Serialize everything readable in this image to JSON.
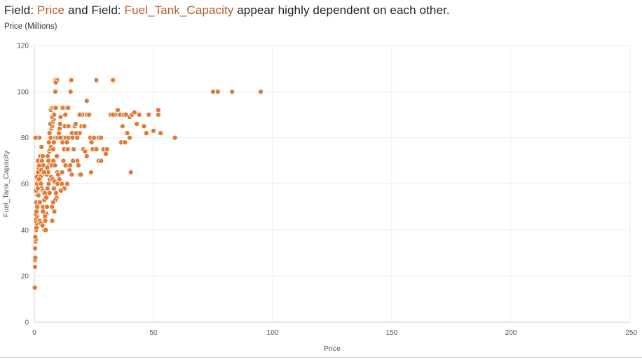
{
  "header": {
    "prefix1": "Field: ",
    "field1": "Price",
    "mid": " and Field: ",
    "field2": "Fuel_Tank_Capacity",
    "suffix": " appear highly dependent on each other.",
    "subtitle": "Price (Millions)"
  },
  "colors": {
    "point": "#e07b39",
    "highlight": "#b55a2a",
    "grid": "#ececec",
    "axis": "#cccccc",
    "text": "#555555"
  },
  "chart_data": {
    "type": "scatter",
    "xlabel": "Price",
    "ylabel": "Fuel_Tank_Capacity",
    "xlim": [
      0,
      250
    ],
    "ylim": [
      0,
      120
    ],
    "xticks": [
      0,
      50,
      100,
      150,
      200,
      250
    ],
    "yticks": [
      0,
      20,
      40,
      60,
      80,
      100,
      120
    ],
    "grid": true,
    "points": [
      [
        0.2,
        15
      ],
      [
        0.3,
        24
      ],
      [
        0.3,
        27
      ],
      [
        0.4,
        28
      ],
      [
        0.3,
        32
      ],
      [
        0.5,
        35
      ],
      [
        0.6,
        36
      ],
      [
        0.4,
        37
      ],
      [
        0.8,
        40
      ],
      [
        0.9,
        41
      ],
      [
        1.0,
        43
      ],
      [
        0.6,
        44
      ],
      [
        0.8,
        45
      ],
      [
        1.1,
        46
      ],
      [
        0.6,
        47
      ],
      [
        0.9,
        48
      ],
      [
        1.2,
        50
      ],
      [
        0.9,
        52
      ],
      [
        1.3,
        55
      ],
      [
        0.7,
        57
      ],
      [
        1.1,
        60
      ],
      [
        1.4,
        62
      ],
      [
        1.0,
        63
      ],
      [
        1.6,
        65
      ],
      [
        1.8,
        67
      ],
      [
        2.0,
        68
      ],
      [
        2.2,
        70
      ],
      [
        1.5,
        70
      ],
      [
        2.5,
        72
      ],
      [
        2.1,
        80
      ],
      [
        0.5,
        80
      ],
      [
        3.0,
        76
      ],
      [
        3.5,
        72
      ],
      [
        3.2,
        70
      ],
      [
        3.8,
        68
      ],
      [
        2.9,
        66
      ],
      [
        3.3,
        64
      ],
      [
        2.6,
        63
      ],
      [
        2.4,
        61
      ],
      [
        2.8,
        60
      ],
      [
        3.1,
        58
      ],
      [
        3.5,
        57
      ],
      [
        4.0,
        56
      ],
      [
        4.4,
        56
      ],
      [
        4.2,
        53
      ],
      [
        4.8,
        50
      ],
      [
        3.7,
        50
      ],
      [
        5.1,
        47
      ],
      [
        4.6,
        44
      ],
      [
        2.2,
        44
      ],
      [
        2.7,
        43
      ],
      [
        3.4,
        42
      ],
      [
        4.2,
        40
      ],
      [
        4.8,
        40
      ],
      [
        5.0,
        54
      ],
      [
        5.5,
        58
      ],
      [
        6.0,
        60
      ],
      [
        6.5,
        62
      ],
      [
        5.2,
        64
      ],
      [
        5.8,
        65
      ],
      [
        6.2,
        68
      ],
      [
        6.8,
        70
      ],
      [
        5.6,
        72
      ],
      [
        6.3,
        74
      ],
      [
        6.6,
        75
      ],
      [
        7.0,
        76
      ],
      [
        6.1,
        78
      ],
      [
        6.9,
        80
      ],
      [
        6.4,
        82
      ],
      [
        7.2,
        84
      ],
      [
        7.4,
        85
      ],
      [
        6.7,
        86
      ],
      [
        7.8,
        87
      ],
      [
        8.1,
        88
      ],
      [
        7.5,
        89
      ],
      [
        8.3,
        90
      ],
      [
        7.0,
        92
      ],
      [
        7.6,
        93
      ],
      [
        8.4,
        93
      ],
      [
        9.0,
        93
      ],
      [
        8.8,
        100
      ],
      [
        8.9,
        105
      ],
      [
        9.5,
        105
      ],
      [
        9.0,
        104
      ],
      [
        8.6,
        80
      ],
      [
        9.2,
        80
      ],
      [
        9.8,
        80
      ],
      [
        8.2,
        78
      ],
      [
        7.9,
        75
      ],
      [
        9.4,
        72
      ],
      [
        8.0,
        70
      ],
      [
        7.3,
        68
      ],
      [
        8.7,
        68
      ],
      [
        9.6,
        65
      ],
      [
        10.0,
        64
      ],
      [
        7.1,
        63
      ],
      [
        7.7,
        62
      ],
      [
        8.5,
        61
      ],
      [
        8.2,
        58
      ],
      [
        9.1,
        56
      ],
      [
        9.3,
        54
      ],
      [
        8.8,
        53
      ],
      [
        7.9,
        52
      ],
      [
        7.4,
        50
      ],
      [
        8.4,
        48
      ],
      [
        7.5,
        44
      ],
      [
        10.3,
        82
      ],
      [
        10.6,
        84
      ],
      [
        10.8,
        86
      ],
      [
        11.0,
        89
      ],
      [
        11.5,
        93
      ],
      [
        12.0,
        93
      ],
      [
        11.2,
        80
      ],
      [
        11.8,
        78
      ],
      [
        12.3,
        80
      ],
      [
        12.5,
        75
      ],
      [
        12.8,
        85
      ],
      [
        13.0,
        90
      ],
      [
        13.5,
        93
      ],
      [
        14.2,
        93
      ],
      [
        13.2,
        80
      ],
      [
        13.7,
        78
      ],
      [
        14.0,
        75
      ],
      [
        14.5,
        80
      ],
      [
        12.2,
        70
      ],
      [
        13.4,
        68
      ],
      [
        11.7,
        65
      ],
      [
        11.5,
        60
      ],
      [
        13.8,
        60
      ],
      [
        12.6,
        58
      ],
      [
        11.1,
        57
      ],
      [
        14.8,
        66
      ],
      [
        15.0,
        68
      ],
      [
        15.2,
        100
      ],
      [
        15.5,
        105
      ],
      [
        15.8,
        82
      ],
      [
        16.0,
        80
      ],
      [
        16.5,
        75
      ],
      [
        17.0,
        85
      ],
      [
        17.3,
        86
      ],
      [
        18.0,
        70
      ],
      [
        18.5,
        68
      ],
      [
        19.0,
        64
      ],
      [
        19.5,
        64
      ],
      [
        18.0,
        80
      ],
      [
        19.0,
        82
      ],
      [
        19.8,
        85
      ],
      [
        20.2,
        90
      ],
      [
        21.0,
        85
      ],
      [
        22.0,
        90
      ],
      [
        20.5,
        75
      ],
      [
        21.3,
        74
      ],
      [
        22.0,
        72
      ],
      [
        23.0,
        90
      ],
      [
        23.5,
        80
      ],
      [
        24.0,
        78
      ],
      [
        24.5,
        75
      ],
      [
        23.8,
        65
      ],
      [
        25.0,
        80
      ],
      [
        26.0,
        105
      ],
      [
        26.0,
        75
      ],
      [
        27.0,
        80
      ],
      [
        27.0,
        70
      ],
      [
        28.0,
        70
      ],
      [
        28.0,
        80
      ],
      [
        29.0,
        75
      ],
      [
        30.0,
        73
      ],
      [
        30.5,
        75
      ],
      [
        32.0,
        90
      ],
      [
        33.0,
        105
      ],
      [
        34.0,
        90
      ],
      [
        35.0,
        92
      ],
      [
        36.0,
        90
      ],
      [
        37.0,
        85
      ],
      [
        37.5,
        90
      ],
      [
        36.5,
        78
      ],
      [
        38.0,
        78
      ],
      [
        38.5,
        90
      ],
      [
        39.0,
        82
      ],
      [
        40.0,
        89
      ],
      [
        40.0,
        80
      ],
      [
        40.5,
        65
      ],
      [
        41.0,
        90
      ],
      [
        42.0,
        91
      ],
      [
        43.0,
        86
      ],
      [
        46.0,
        85
      ],
      [
        47.0,
        82
      ],
      [
        48.0,
        90
      ],
      [
        50.0,
        83
      ],
      [
        52.0,
        90
      ],
      [
        52.0,
        92
      ],
      [
        53.0,
        82
      ],
      [
        59.0,
        80
      ],
      [
        75.0,
        100
      ],
      [
        77.0,
        100
      ],
      [
        83.0,
        100
      ],
      [
        95.0,
        100
      ],
      [
        22.0,
        96
      ],
      [
        33.0,
        90
      ],
      [
        44.0,
        90
      ],
      [
        19.0,
        90
      ],
      [
        17.5,
        82
      ],
      [
        16.2,
        70
      ],
      [
        15.7,
        64
      ],
      [
        14.3,
        85
      ],
      [
        13.1,
        68
      ],
      [
        10.9,
        80
      ],
      [
        10.5,
        62
      ],
      [
        9.7,
        60
      ],
      [
        6.4,
        56
      ],
      [
        5.3,
        50
      ],
      [
        4.5,
        46
      ],
      [
        3.6,
        48
      ],
      [
        2.3,
        52
      ],
      [
        1.7,
        55
      ],
      [
        1.4,
        58
      ],
      [
        2.0,
        62
      ],
      [
        4.1,
        65
      ],
      [
        5.4,
        67
      ],
      [
        5.9,
        70
      ]
    ]
  }
}
